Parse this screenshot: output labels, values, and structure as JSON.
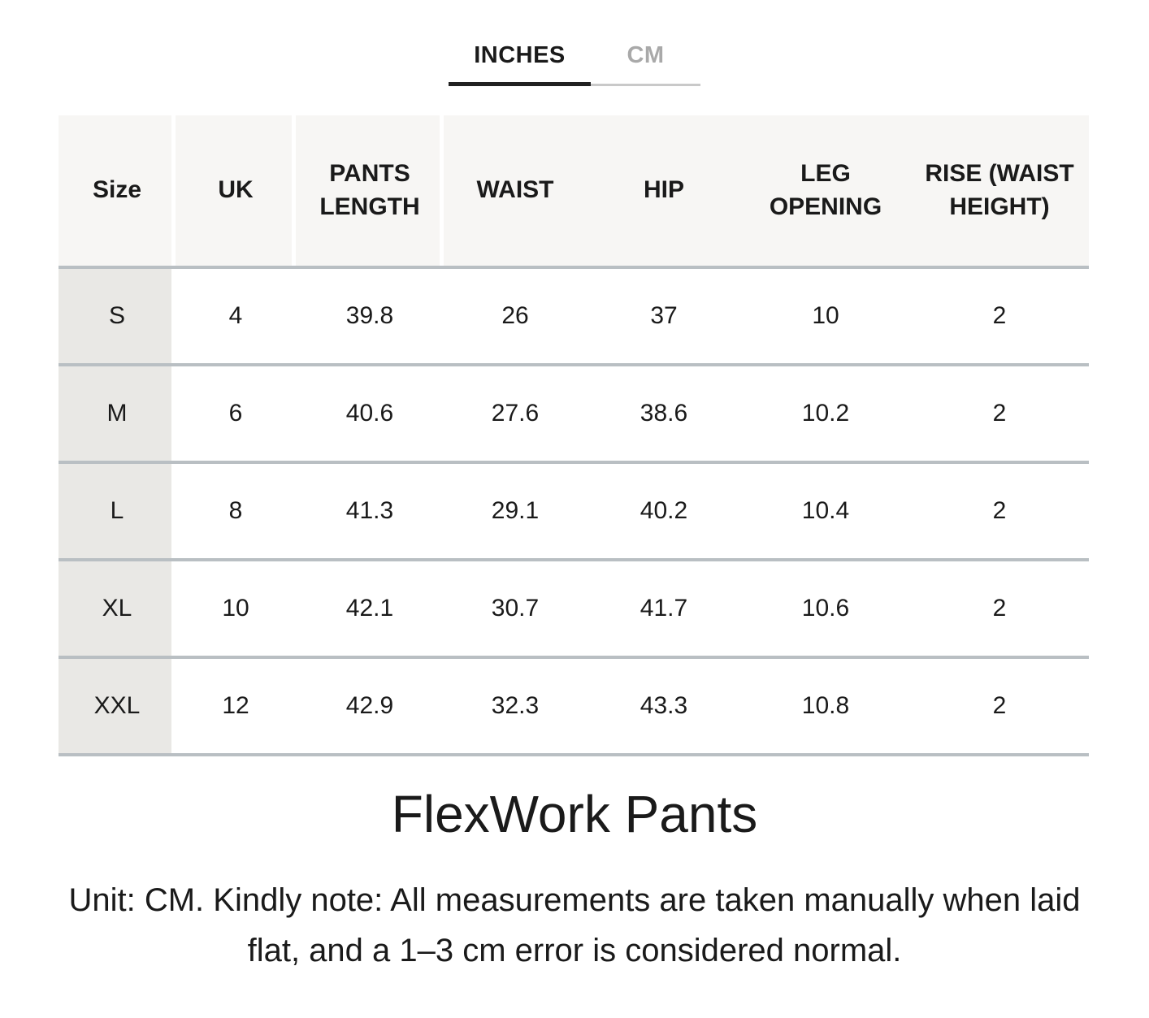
{
  "tabs": {
    "inches_label": "INCHES",
    "cm_label": "CM",
    "active": "INCHES"
  },
  "table": {
    "headers": [
      "Size",
      "UK",
      "PANTS LENGTH",
      "WAIST",
      "HIP",
      "LEG OPENING",
      "RISE (WAIST HEIGHT)"
    ],
    "rows": [
      [
        "S",
        "4",
        "39.8",
        "26",
        "37",
        "10",
        "2"
      ],
      [
        "M",
        "6",
        "40.6",
        "27.6",
        "38.6",
        "10.2",
        "2"
      ],
      [
        "L",
        "8",
        "41.3",
        "29.1",
        "40.2",
        "10.4",
        "2"
      ],
      [
        "XL",
        "10",
        "42.1",
        "30.7",
        "41.7",
        "10.6",
        "2"
      ],
      [
        "XXL",
        "12",
        "42.9",
        "32.3",
        "43.3",
        "10.8",
        "2"
      ]
    ]
  },
  "title": "FlexWork Pants",
  "note": "Unit: CM. Kindly note: All measurements are taken manually when laid flat, and a 1–3 cm error is considered normal.",
  "colors": {
    "header_bg": "#f7f6f4",
    "size_column_bg": "#e9e8e5",
    "row_separator": "#b9bfc3",
    "active_tab_underline": "#212121",
    "inactive_tab_underline": "#c9c9c9",
    "inactive_tab_text": "#a9a9a9"
  }
}
